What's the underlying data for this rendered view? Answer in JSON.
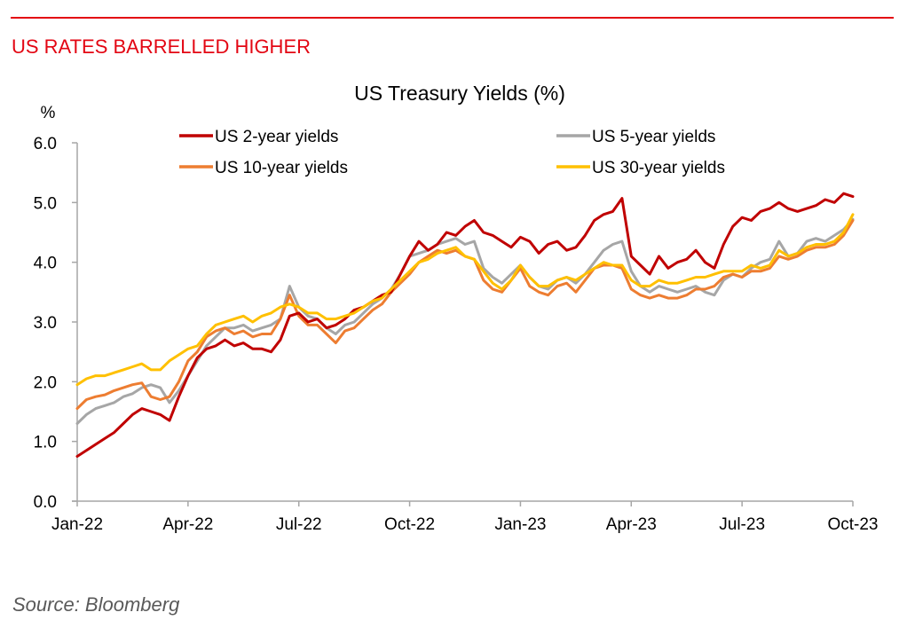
{
  "header": {
    "headline": "US RATES BARRELLED HIGHER"
  },
  "footer": {
    "source": "Source: Bloomberg"
  },
  "chart_data": {
    "type": "line",
    "title": "US Treasury Yields (%)",
    "ylabel": "%",
    "xlabel": "",
    "ylim": [
      0,
      6
    ],
    "yticks": [
      0,
      1,
      2,
      3,
      4,
      5,
      6
    ],
    "ytick_labels": [
      "0.0",
      "1.0",
      "2.0",
      "3.0",
      "4.0",
      "5.0",
      "6.0"
    ],
    "xlim_months_from_jan22": [
      0,
      21
    ],
    "xticks_months_from_jan22": [
      0,
      3,
      6,
      9,
      12,
      15,
      18,
      21
    ],
    "xtick_labels": [
      "Jan-22",
      "Apr-22",
      "Jul-22",
      "Oct-22",
      "Jan-23",
      "Apr-23",
      "Jul-23",
      "Oct-23"
    ],
    "grid": false,
    "legend": "top",
    "x_unit": "months since Jan-22",
    "x": [
      0,
      0.25,
      0.5,
      0.75,
      1,
      1.25,
      1.5,
      1.75,
      2,
      2.25,
      2.5,
      2.75,
      3,
      3.25,
      3.5,
      3.75,
      4,
      4.25,
      4.5,
      4.75,
      5,
      5.25,
      5.5,
      5.75,
      6,
      6.25,
      6.5,
      6.75,
      7,
      7.25,
      7.5,
      7.75,
      8,
      8.25,
      8.5,
      8.75,
      9,
      9.25,
      9.5,
      9.75,
      10,
      10.25,
      10.5,
      10.75,
      11,
      11.25,
      11.5,
      11.75,
      12,
      12.25,
      12.5,
      12.75,
      13,
      13.25,
      13.5,
      13.75,
      14,
      14.25,
      14.5,
      14.75,
      15,
      15.25,
      15.5,
      15.75,
      16,
      16.25,
      16.5,
      16.75,
      17,
      17.25,
      17.5,
      17.75,
      18,
      18.25,
      18.5,
      18.75,
      19,
      19.25,
      19.5,
      19.75,
      20,
      20.25,
      20.5,
      20.75,
      21
    ],
    "series": [
      {
        "name": "US 2-year yields",
        "color": "#c00000",
        "values": [
          0.75,
          0.85,
          0.95,
          1.05,
          1.15,
          1.3,
          1.45,
          1.55,
          1.5,
          1.45,
          1.35,
          1.75,
          2.1,
          2.4,
          2.55,
          2.6,
          2.7,
          2.6,
          2.65,
          2.55,
          2.55,
          2.5,
          2.7,
          3.1,
          3.15,
          3.0,
          3.05,
          2.9,
          2.95,
          3.05,
          3.2,
          3.25,
          3.35,
          3.45,
          3.5,
          3.8,
          4.1,
          4.35,
          4.2,
          4.3,
          4.5,
          4.45,
          4.6,
          4.7,
          4.5,
          4.45,
          4.35,
          4.25,
          4.42,
          4.35,
          4.15,
          4.3,
          4.35,
          4.2,
          4.25,
          4.45,
          4.7,
          4.8,
          4.85,
          5.07,
          4.1,
          3.95,
          3.8,
          4.1,
          3.9,
          4.0,
          4.05,
          4.2,
          4.0,
          3.9,
          4.3,
          4.6,
          4.75,
          4.7,
          4.85,
          4.9,
          5.0,
          4.9,
          4.85,
          4.9,
          4.95,
          5.05,
          5.0,
          5.15,
          5.1
        ]
      },
      {
        "name": "US 5-year yields",
        "color": "#a6a6a6",
        "values": [
          1.3,
          1.45,
          1.55,
          1.6,
          1.65,
          1.75,
          1.8,
          1.9,
          1.95,
          1.9,
          1.65,
          1.85,
          2.1,
          2.35,
          2.6,
          2.75,
          2.9,
          2.9,
          2.95,
          2.85,
          2.9,
          2.95,
          3.05,
          3.6,
          3.25,
          3.1,
          3.05,
          2.9,
          2.8,
          2.95,
          3.0,
          3.15,
          3.3,
          3.4,
          3.55,
          3.8,
          4.1,
          4.15,
          4.2,
          4.3,
          4.35,
          4.4,
          4.3,
          4.35,
          3.9,
          3.75,
          3.65,
          3.8,
          3.95,
          3.75,
          3.6,
          3.55,
          3.7,
          3.75,
          3.65,
          3.8,
          4.0,
          4.2,
          4.3,
          4.35,
          3.85,
          3.6,
          3.5,
          3.6,
          3.55,
          3.5,
          3.55,
          3.6,
          3.5,
          3.45,
          3.7,
          3.8,
          3.75,
          3.9,
          4.0,
          4.05,
          4.35,
          4.1,
          4.15,
          4.35,
          4.4,
          4.35,
          4.45,
          4.55,
          4.72
        ]
      },
      {
        "name": "US 10-year yields",
        "color": "#ed7d31",
        "values": [
          1.55,
          1.7,
          1.75,
          1.78,
          1.85,
          1.9,
          1.95,
          1.98,
          1.75,
          1.7,
          1.75,
          2.0,
          2.35,
          2.5,
          2.75,
          2.85,
          2.9,
          2.8,
          2.85,
          2.75,
          2.8,
          2.8,
          3.05,
          3.45,
          3.1,
          2.95,
          2.95,
          2.8,
          2.65,
          2.85,
          2.9,
          3.05,
          3.2,
          3.3,
          3.5,
          3.65,
          3.8,
          4.0,
          4.1,
          4.2,
          4.15,
          4.2,
          4.1,
          4.05,
          3.7,
          3.55,
          3.5,
          3.7,
          3.9,
          3.6,
          3.5,
          3.45,
          3.6,
          3.65,
          3.5,
          3.7,
          3.9,
          3.95,
          3.95,
          3.9,
          3.55,
          3.45,
          3.4,
          3.45,
          3.4,
          3.4,
          3.45,
          3.55,
          3.55,
          3.6,
          3.75,
          3.8,
          3.75,
          3.85,
          3.85,
          3.9,
          4.1,
          4.05,
          4.1,
          4.2,
          4.25,
          4.25,
          4.3,
          4.45,
          4.7
        ]
      },
      {
        "name": "US 30-year yields",
        "color": "#ffc000",
        "values": [
          1.95,
          2.05,
          2.1,
          2.1,
          2.15,
          2.2,
          2.25,
          2.3,
          2.2,
          2.2,
          2.35,
          2.45,
          2.55,
          2.6,
          2.8,
          2.95,
          3.0,
          3.05,
          3.1,
          3.0,
          3.1,
          3.15,
          3.25,
          3.3,
          3.25,
          3.15,
          3.15,
          3.05,
          3.05,
          3.1,
          3.15,
          3.25,
          3.35,
          3.4,
          3.55,
          3.7,
          3.85,
          4.0,
          4.05,
          4.15,
          4.2,
          4.25,
          4.1,
          4.05,
          3.85,
          3.65,
          3.55,
          3.7,
          3.95,
          3.75,
          3.6,
          3.6,
          3.7,
          3.75,
          3.7,
          3.8,
          3.9,
          4.0,
          3.95,
          3.95,
          3.7,
          3.6,
          3.6,
          3.7,
          3.65,
          3.65,
          3.7,
          3.75,
          3.75,
          3.8,
          3.85,
          3.85,
          3.85,
          3.95,
          3.9,
          3.95,
          4.2,
          4.1,
          4.15,
          4.25,
          4.3,
          4.3,
          4.35,
          4.5,
          4.8
        ]
      }
    ]
  }
}
